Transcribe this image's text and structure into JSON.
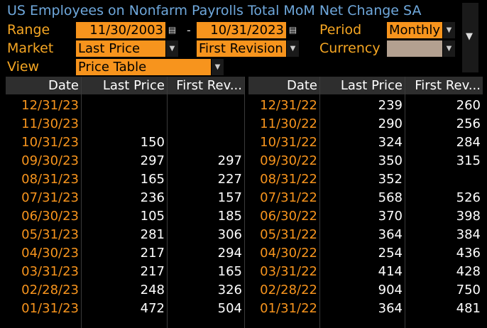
{
  "title": "US Employees on Nonfarm Payrolls Total MoM Net Change SA",
  "controls": {
    "range_label": "Range",
    "range_start": "11/30/2003",
    "range_separator": "-",
    "range_end": "10/31/2023",
    "period_label": "Period",
    "period_value": "Monthly",
    "market_label": "Market",
    "market_value": "Last Price",
    "revision_value": "First Revision",
    "currency_label": "Currency",
    "currency_value": "",
    "view_label": "View",
    "view_value": "Price Table"
  },
  "table": {
    "headers": [
      "Date",
      "Last Price",
      "First Rev...",
      "Date",
      "Last Price",
      "First Rev..."
    ],
    "left_rows": [
      {
        "date": "12/31/23",
        "last": "",
        "first": ""
      },
      {
        "date": "11/30/23",
        "last": "",
        "first": ""
      },
      {
        "date": "10/31/23",
        "last": "150",
        "first": ""
      },
      {
        "date": "09/30/23",
        "last": "297",
        "first": "297"
      },
      {
        "date": "08/31/23",
        "last": "165",
        "first": "227"
      },
      {
        "date": "07/31/23",
        "last": "236",
        "first": "157"
      },
      {
        "date": "06/30/23",
        "last": "105",
        "first": "185"
      },
      {
        "date": "05/31/23",
        "last": "281",
        "first": "306"
      },
      {
        "date": "04/30/23",
        "last": "217",
        "first": "294"
      },
      {
        "date": "03/31/23",
        "last": "217",
        "first": "165"
      },
      {
        "date": "02/28/23",
        "last": "248",
        "first": "326"
      },
      {
        "date": "01/31/23",
        "last": "472",
        "first": "504"
      }
    ],
    "right_rows": [
      {
        "date": "12/31/22",
        "last": "239",
        "first": "260"
      },
      {
        "date": "11/30/22",
        "last": "290",
        "first": "256"
      },
      {
        "date": "10/31/22",
        "last": "324",
        "first": "284"
      },
      {
        "date": "09/30/22",
        "last": "350",
        "first": "315"
      },
      {
        "date": "08/31/22",
        "last": "352",
        "first": ""
      },
      {
        "date": "07/31/22",
        "last": "568",
        "first": "526"
      },
      {
        "date": "06/30/22",
        "last": "370",
        "first": "398"
      },
      {
        "date": "05/31/22",
        "last": "364",
        "first": "384"
      },
      {
        "date": "04/30/22",
        "last": "254",
        "first": "436"
      },
      {
        "date": "03/31/22",
        "last": "414",
        "first": "428"
      },
      {
        "date": "02/28/22",
        "last": "904",
        "first": "750"
      },
      {
        "date": "01/31/22",
        "last": "364",
        "first": "481"
      }
    ]
  },
  "colors": {
    "title": "#6fa8dc",
    "label": "#f5a623",
    "field": "#f7941d",
    "header_bg": "#2e2e2e"
  }
}
